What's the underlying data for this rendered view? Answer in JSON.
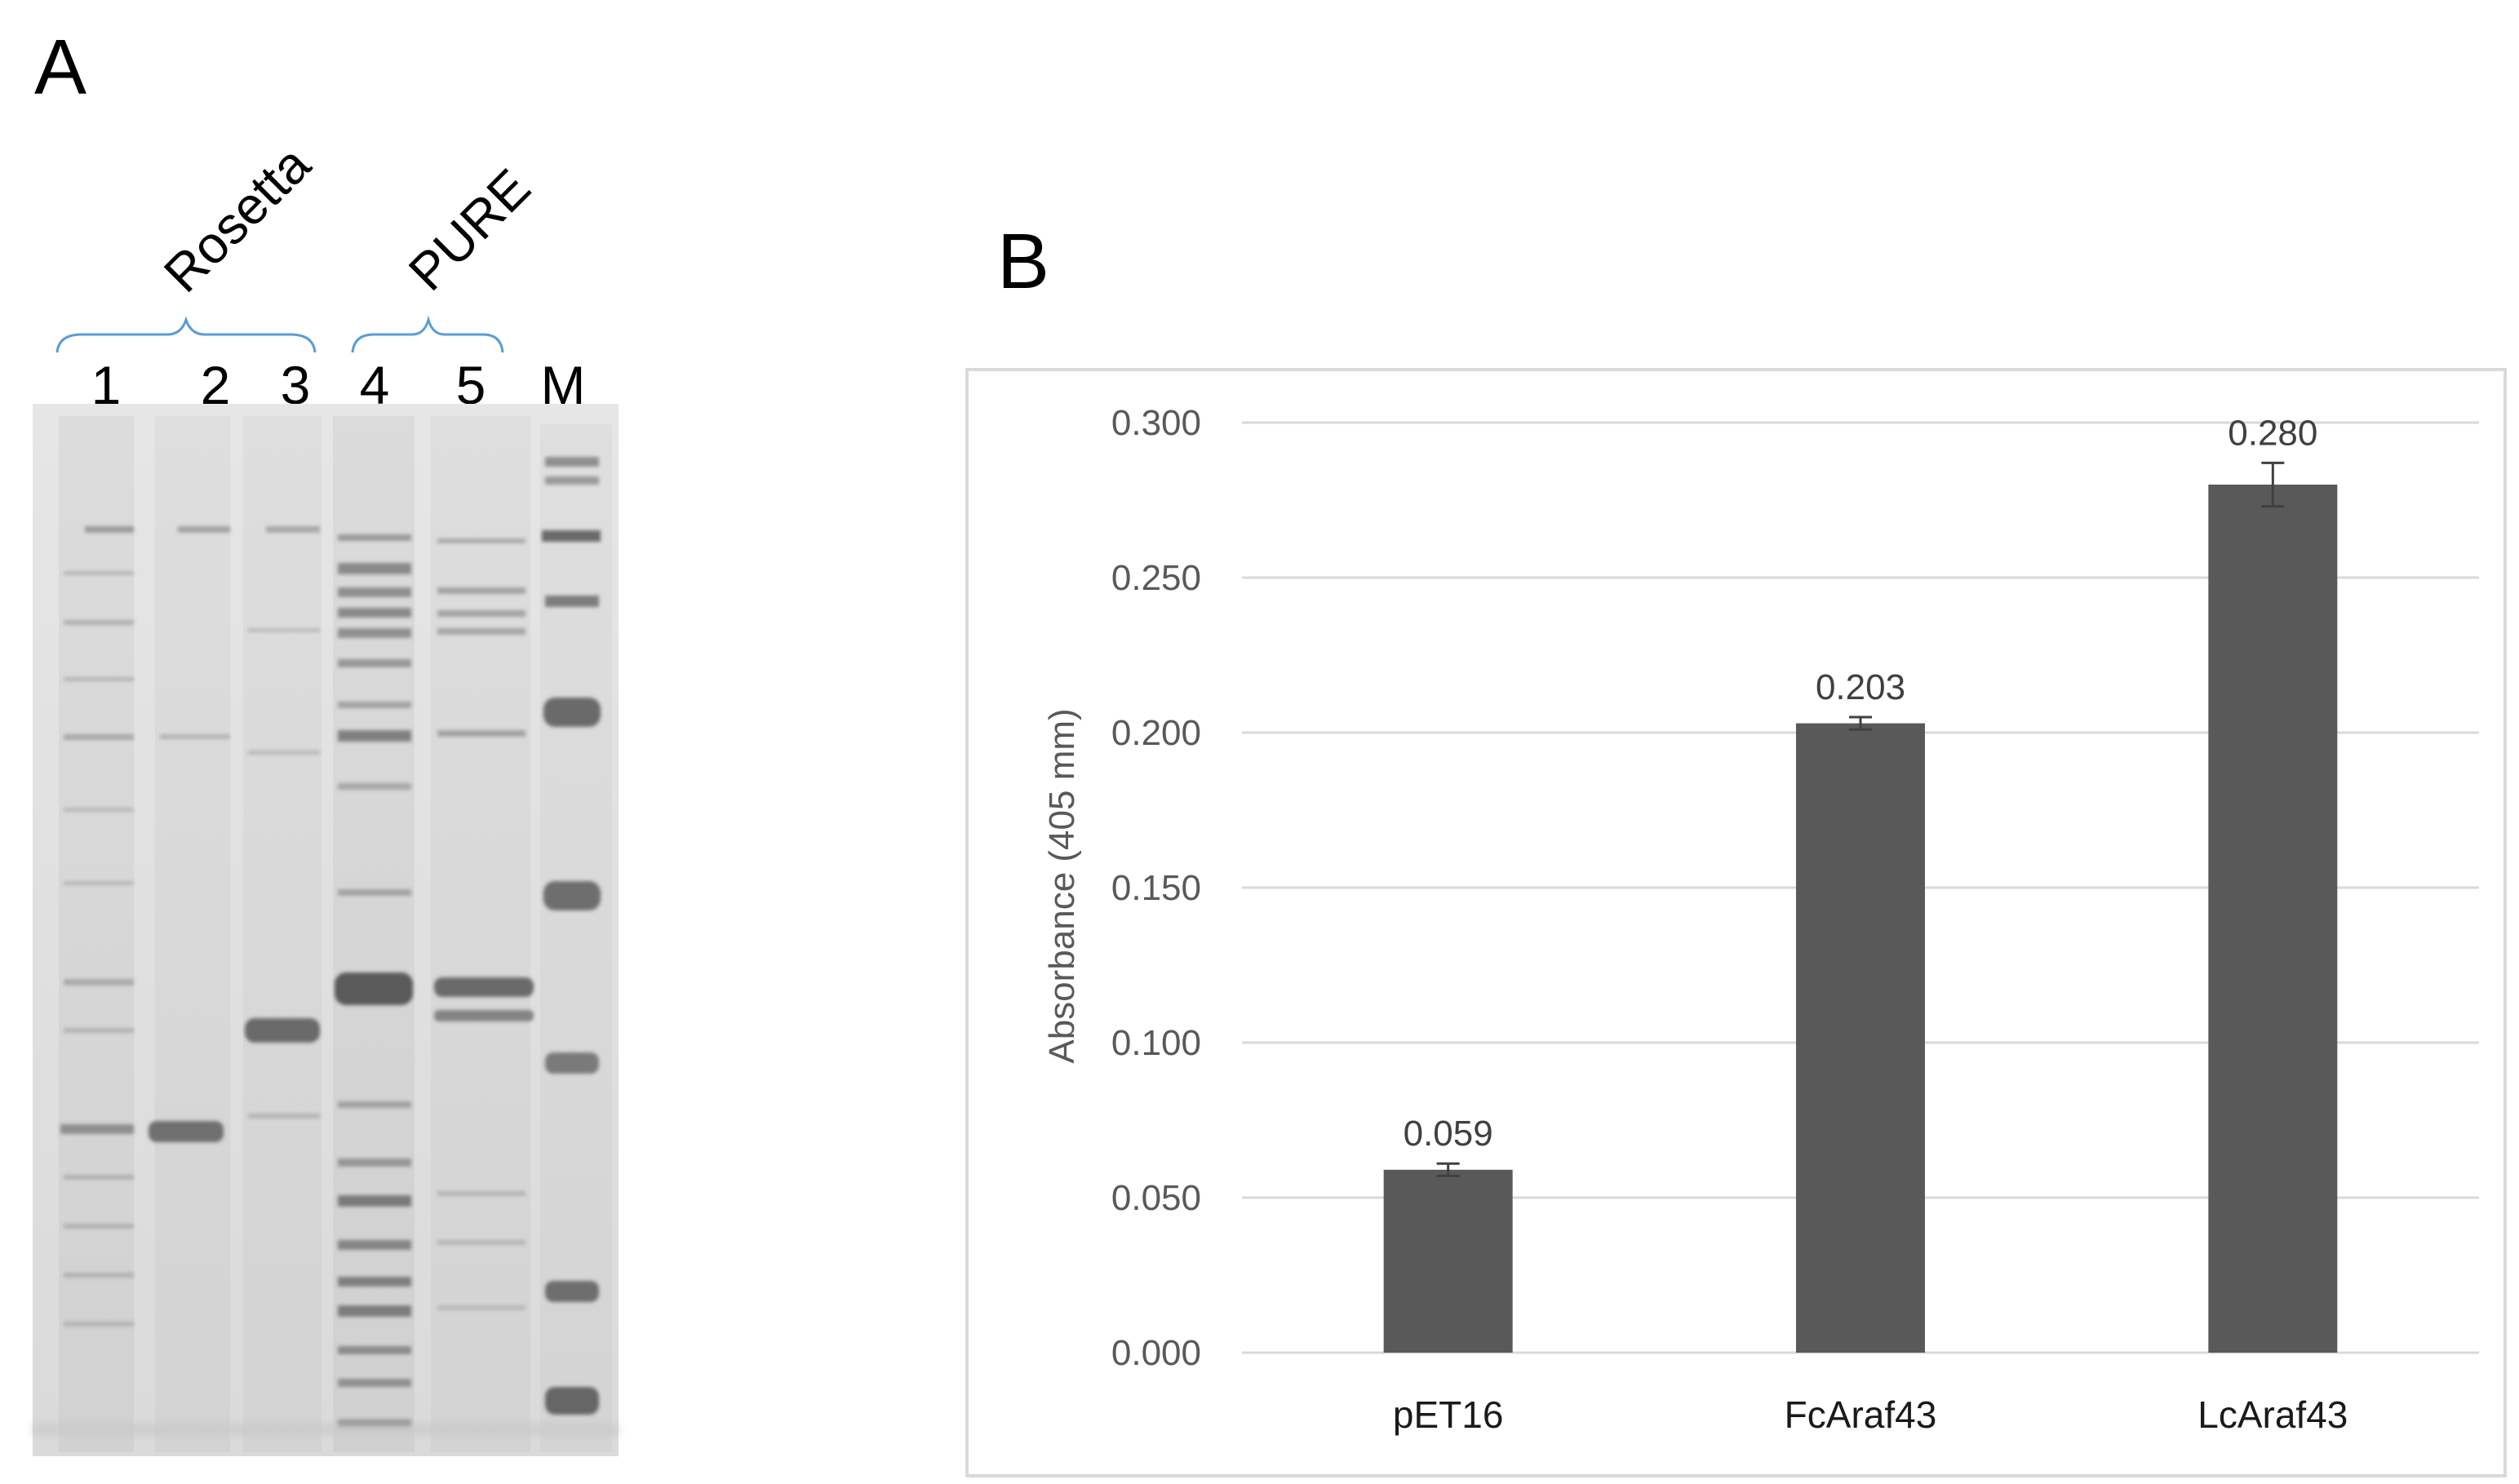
{
  "panel_a": {
    "letter": "A",
    "groups": [
      {
        "label": "Rosetta",
        "lanes": [
          "1",
          "2",
          "3"
        ]
      },
      {
        "label": "PURE",
        "lanes": [
          "4",
          "5"
        ]
      }
    ],
    "marker_lane": "M",
    "bracket_color": "#5b9bd5"
  },
  "panel_b": {
    "letter": "B"
  },
  "chart_data": {
    "type": "bar",
    "categories": [
      "pET16",
      "FcAraf43",
      "LcAraf43"
    ],
    "values": [
      0.059,
      0.203,
      0.28
    ],
    "value_labels": [
      "0.059",
      "0.203",
      "0.280"
    ],
    "error": [
      0.002,
      0.002,
      0.007
    ],
    "ylabel": "Absorbance (405 mm)",
    "xlabel": "",
    "ylim": [
      0,
      0.3
    ],
    "yticks": [
      0,
      0.05,
      0.1,
      0.15,
      0.2,
      0.25,
      0.3
    ],
    "ytick_labels": [
      "0.000",
      "0.050",
      "0.100",
      "0.150",
      "0.200",
      "0.250",
      "0.300"
    ],
    "grid": true,
    "bar_color": "#595959",
    "gridline_color": "#d9d9d9"
  }
}
